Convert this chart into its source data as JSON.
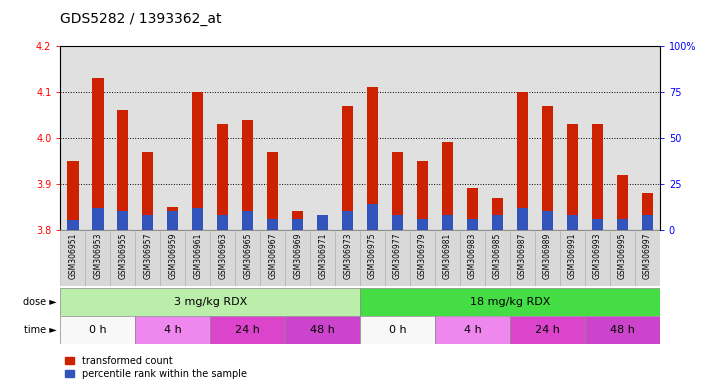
{
  "title": "GDS5282 / 1393362_at",
  "samples": [
    "GSM306951",
    "GSM306953",
    "GSM306955",
    "GSM306957",
    "GSM306959",
    "GSM306961",
    "GSM306963",
    "GSM306965",
    "GSM306967",
    "GSM306969",
    "GSM306971",
    "GSM306973",
    "GSM306975",
    "GSM306977",
    "GSM306979",
    "GSM306981",
    "GSM306983",
    "GSM306985",
    "GSM306987",
    "GSM306989",
    "GSM306991",
    "GSM306993",
    "GSM306995",
    "GSM306997"
  ],
  "transformed_count": [
    3.95,
    4.13,
    4.06,
    3.97,
    3.85,
    4.1,
    4.03,
    4.04,
    3.97,
    3.84,
    3.83,
    4.07,
    4.11,
    3.97,
    3.95,
    3.99,
    3.89,
    3.87,
    4.1,
    4.07,
    4.03,
    4.03,
    3.92,
    3.88
  ],
  "percentile_rank_pct": [
    5,
    12,
    10,
    8,
    10,
    12,
    8,
    10,
    6,
    6,
    8,
    10,
    14,
    8,
    6,
    8,
    6,
    8,
    12,
    10,
    8,
    6,
    6,
    8
  ],
  "ylim": [
    3.8,
    4.2
  ],
  "yticks": [
    3.8,
    3.9,
    4.0,
    4.1,
    4.2
  ],
  "right_yticks_pct": [
    0,
    25,
    50,
    75,
    100
  ],
  "right_ylabels": [
    "0",
    "25",
    "50",
    "75",
    "100%"
  ],
  "bar_color": "#cc2200",
  "percentile_color": "#3355bb",
  "base": 3.8,
  "dose_groups": [
    {
      "label": "3 mg/kg RDX",
      "start": 0,
      "end": 12,
      "color": "#bbeeaa"
    },
    {
      "label": "18 mg/kg RDX",
      "start": 12,
      "end": 24,
      "color": "#44dd44"
    }
  ],
  "time_groups": [
    {
      "label": "0 h",
      "start": 0,
      "end": 3,
      "color": "#f8f8f8"
    },
    {
      "label": "4 h",
      "start": 3,
      "end": 6,
      "color": "#ee88ee"
    },
    {
      "label": "24 h",
      "start": 6,
      "end": 9,
      "color": "#dd44cc"
    },
    {
      "label": "48 h",
      "start": 9,
      "end": 12,
      "color": "#cc44cc"
    },
    {
      "label": "0 h",
      "start": 12,
      "end": 15,
      "color": "#f8f8f8"
    },
    {
      "label": "4 h",
      "start": 15,
      "end": 18,
      "color": "#ee88ee"
    },
    {
      "label": "24 h",
      "start": 18,
      "end": 21,
      "color": "#dd44cc"
    },
    {
      "label": "48 h",
      "start": 21,
      "end": 24,
      "color": "#cc44cc"
    }
  ],
  "bg_color": "#ffffff",
  "plot_bg": "#e0e0e0",
  "title_fontsize": 10,
  "tick_fontsize": 7,
  "sample_fontsize": 5.5,
  "annot_fontsize": 8,
  "legend_fontsize": 7,
  "bar_width": 0.45
}
